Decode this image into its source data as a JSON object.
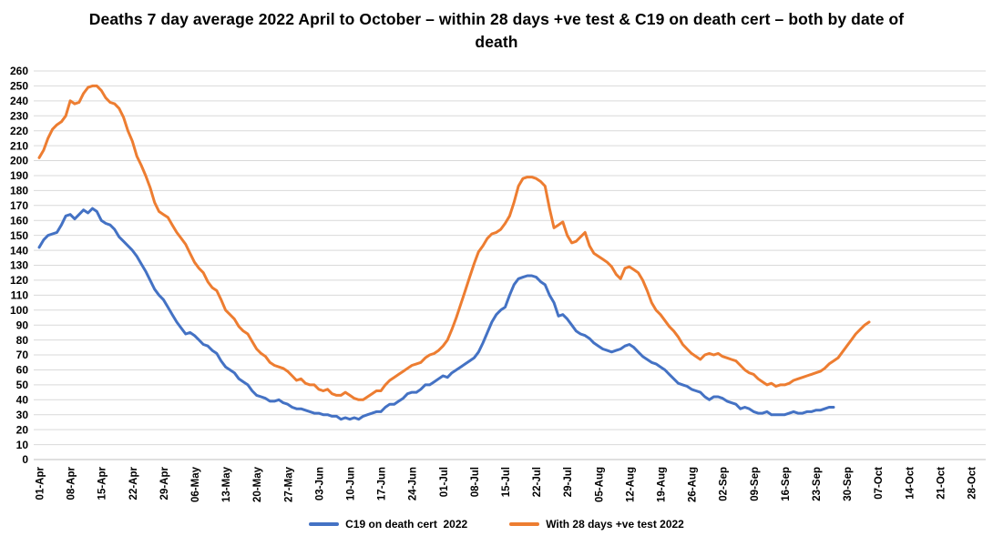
{
  "title": "Deaths 7 day average 2022 April to October – within 28 days +ve test & C19 on death cert – both by date of death",
  "colors": {
    "background": "#FFFFFF",
    "gridline": "#D9D9D9",
    "axis_line": "#BFBFBF",
    "label_text": "#000000",
    "series_blue": "#4472C4",
    "series_orange": "#ED7D31"
  },
  "chart_data": {
    "type": "line",
    "title": "Deaths 7 day average 2022 April to October – within 28 days +ve test & C19 on death cert – both by date of death",
    "xlabel": "",
    "ylabel": "",
    "x_unit": "date of death (daily values, 2022)",
    "x_start": "01-Apr",
    "x_tick_labels": [
      "01-Apr",
      "08-Apr",
      "15-Apr",
      "22-Apr",
      "29-Apr",
      "06-May",
      "13-May",
      "20-May",
      "27-May",
      "03-Jun",
      "10-Jun",
      "17-Jun",
      "24-Jun",
      "01-Jul",
      "08-Jul",
      "15-Jul",
      "22-Jul",
      "29-Jul",
      "05-Aug",
      "12-Aug",
      "19-Aug",
      "26-Aug",
      "02-Sep",
      "09-Sep",
      "16-Sep",
      "23-Sep",
      "30-Sep",
      "07-Oct",
      "14-Oct",
      "21-Oct",
      "28-Oct"
    ],
    "y_axis": {
      "min": 0,
      "max": 260,
      "step": 10
    },
    "grid": "horizontal-only",
    "legend_position": "bottom-center",
    "series": [
      {
        "name": "C19 on death cert  2022",
        "color": "#4472C4",
        "start": "01-Apr",
        "end": "27-Sep",
        "values": [
          142,
          147,
          150,
          151,
          152,
          157,
          163,
          164,
          161,
          164,
          167,
          165,
          168,
          166,
          160,
          158,
          157,
          154,
          149,
          146,
          143,
          140,
          136,
          131,
          126,
          120,
          114,
          110,
          107,
          102,
          97,
          92,
          88,
          84,
          85,
          83,
          80,
          77,
          76,
          73,
          71,
          66,
          62,
          60,
          58,
          54,
          52,
          50,
          46,
          43,
          42,
          41,
          39,
          39,
          40,
          38,
          37,
          35,
          34,
          34,
          33,
          32,
          31,
          31,
          30,
          30,
          29,
          29,
          27,
          28,
          27,
          28,
          27,
          29,
          30,
          31,
          32,
          32,
          35,
          37,
          37,
          39,
          41,
          44,
          45,
          45,
          47,
          50,
          50,
          52,
          54,
          56,
          55,
          58,
          60,
          62,
          64,
          66,
          68,
          72,
          78,
          85,
          92,
          97,
          100,
          102,
          110,
          117,
          121,
          122,
          123,
          123,
          122,
          119,
          117,
          110,
          105,
          96,
          97,
          94,
          90,
          86,
          84,
          83,
          81,
          78,
          76,
          74,
          73,
          72,
          73,
          74,
          76,
          77,
          75,
          72,
          69,
          67,
          65,
          64,
          62,
          60,
          57,
          54,
          51,
          50,
          49,
          47,
          46,
          45,
          42,
          40,
          42,
          42,
          41,
          39,
          38,
          37,
          34,
          35,
          34,
          32,
          31,
          31,
          32,
          30,
          30,
          30,
          30,
          31,
          32,
          31,
          31,
          32,
          32,
          33,
          33,
          34,
          35,
          35
        ]
      },
      {
        "name": "With 28 days +ve test 2022",
        "color": "#ED7D31",
        "start": "01-Apr",
        "end": "05-Oct",
        "values": [
          202,
          207,
          215,
          221,
          224,
          226,
          230,
          240,
          238,
          239,
          245,
          249,
          250,
          250,
          247,
          242,
          239,
          238,
          235,
          229,
          220,
          213,
          203,
          197,
          190,
          182,
          172,
          166,
          164,
          162,
          157,
          152,
          148,
          144,
          138,
          132,
          128,
          125,
          119,
          115,
          113,
          107,
          100,
          97,
          94,
          89,
          86,
          84,
          79,
          74,
          71,
          69,
          65,
          63,
          62,
          61,
          59,
          56,
          53,
          54,
          51,
          50,
          50,
          47,
          46,
          47,
          44,
          43,
          43,
          45,
          43,
          41,
          40,
          40,
          42,
          44,
          46,
          46,
          50,
          53,
          55,
          57,
          59,
          61,
          63,
          64,
          65,
          68,
          70,
          71,
          73,
          76,
          80,
          87,
          95,
          104,
          113,
          122,
          131,
          139,
          143,
          148,
          151,
          152,
          154,
          158,
          163,
          172,
          183,
          188,
          189,
          189,
          188,
          186,
          183,
          168,
          155,
          157,
          159,
          150,
          145,
          146,
          149,
          152,
          143,
          138,
          136,
          134,
          132,
          129,
          124,
          121,
          128,
          129,
          127,
          125,
          120,
          113,
          105,
          100,
          97,
          93,
          89,
          86,
          82,
          77,
          74,
          71,
          69,
          67,
          70,
          71,
          70,
          71,
          69,
          68,
          67,
          66,
          63,
          60,
          58,
          57,
          54,
          52,
          50,
          51,
          49,
          50,
          50,
          51,
          53,
          54,
          55,
          56,
          57,
          58,
          59,
          61,
          64,
          66,
          68,
          72,
          76,
          80,
          84,
          87,
          90,
          92
        ]
      }
    ]
  }
}
